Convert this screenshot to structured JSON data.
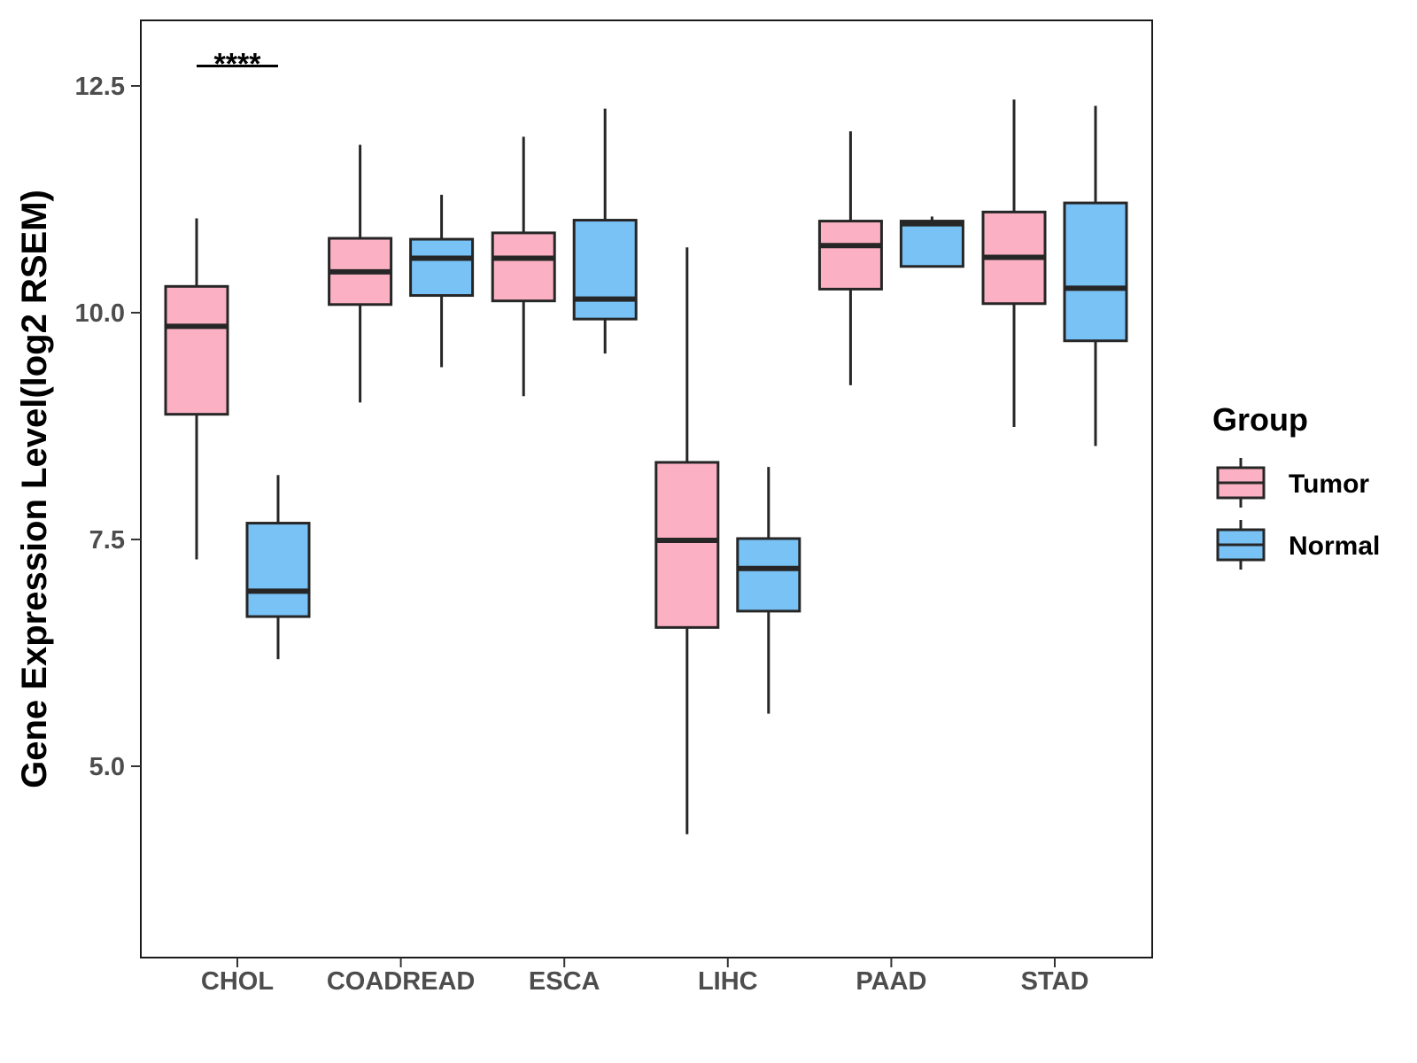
{
  "chart_data": {
    "type": "boxplot",
    "title": "",
    "xlabel": "",
    "ylabel": "Gene Expression Level(log2 RSEM)",
    "ylim": [
      3.0,
      13.2
    ],
    "yticks": [
      "5.0",
      "7.5",
      "10.0",
      "12.5"
    ],
    "grid": false,
    "categories": [
      "CHOL",
      "COADREAD",
      "ESCA",
      "LIHC",
      "PAAD",
      "STAD"
    ],
    "legend": {
      "title": "Group",
      "position": "right",
      "entries": [
        "Tumor",
        "Normal"
      ]
    },
    "colors": {
      "Tumor": "#fbb1c3",
      "Normal": "#79c2f6",
      "outline": "#262626"
    },
    "series": [
      {
        "name": "Tumor",
        "boxes": [
          {
            "category": "CHOL",
            "whisker_low": 7.28,
            "q1": 8.88,
            "median": 9.85,
            "q3": 10.29,
            "whisker_high": 11.04
          },
          {
            "category": "COADREAD",
            "whisker_low": 9.01,
            "q1": 10.09,
            "median": 10.45,
            "q3": 10.82,
            "whisker_high": 11.85
          },
          {
            "category": "ESCA",
            "whisker_low": 9.08,
            "q1": 10.13,
            "median": 10.6,
            "q3": 10.88,
            "whisker_high": 11.94
          },
          {
            "category": "LIHC",
            "whisker_low": 4.25,
            "q1": 6.53,
            "median": 7.49,
            "q3": 8.35,
            "whisker_high": 10.72
          },
          {
            "category": "PAAD",
            "whisker_low": 9.2,
            "q1": 10.26,
            "median": 10.74,
            "q3": 11.01,
            "whisker_high": 12.0
          },
          {
            "category": "STAD",
            "whisker_low": 8.74,
            "q1": 10.1,
            "median": 10.61,
            "q3": 11.11,
            "whisker_high": 12.35
          }
        ]
      },
      {
        "name": "Normal",
        "boxes": [
          {
            "category": "CHOL",
            "whisker_low": 6.18,
            "q1": 6.65,
            "median": 6.93,
            "q3": 7.68,
            "whisker_high": 8.21
          },
          {
            "category": "COADREAD",
            "whisker_low": 9.4,
            "q1": 10.19,
            "median": 10.6,
            "q3": 10.81,
            "whisker_high": 11.3
          },
          {
            "category": "ESCA",
            "whisker_low": 9.55,
            "q1": 9.93,
            "median": 10.15,
            "q3": 11.02,
            "whisker_high": 12.25
          },
          {
            "category": "LIHC",
            "whisker_low": 5.58,
            "q1": 6.71,
            "median": 7.18,
            "q3": 7.51,
            "whisker_high": 8.3
          },
          {
            "category": "PAAD",
            "whisker_low": 10.51,
            "q1": 10.51,
            "median": 10.98,
            "q3": 11.01,
            "whisker_high": 11.06
          },
          {
            "category": "STAD",
            "whisker_low": 8.53,
            "q1": 9.69,
            "median": 10.27,
            "q3": 11.21,
            "whisker_high": 12.28
          }
        ]
      }
    ],
    "annotations": [
      {
        "category": "CHOL",
        "text": "****",
        "y": 12.72
      }
    ]
  }
}
